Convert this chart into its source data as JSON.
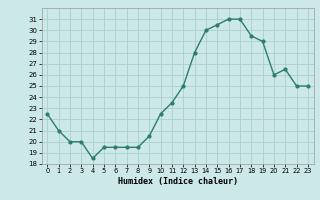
{
  "hours": [
    0,
    1,
    2,
    3,
    4,
    5,
    6,
    7,
    8,
    9,
    10,
    11,
    12,
    13,
    14,
    15,
    16,
    17,
    18,
    19,
    20,
    21,
    22,
    23
  ],
  "values": [
    22.5,
    21.0,
    20.0,
    20.0,
    18.5,
    19.5,
    19.5,
    19.5,
    19.5,
    20.5,
    22.5,
    23.5,
    25.0,
    28.0,
    30.0,
    30.5,
    31.0,
    31.0,
    29.5,
    29.0,
    26.0,
    26.5,
    25.0,
    25.0
  ],
  "line_color": "#2e7d6e",
  "bg_color": "#cce8e8",
  "grid_color": "#aacece",
  "xlabel": "Humidex (Indice chaleur)",
  "ylim": [
    18,
    32
  ],
  "yticks": [
    18,
    19,
    20,
    21,
    22,
    23,
    24,
    25,
    26,
    27,
    28,
    29,
    30,
    31
  ],
  "xlim": [
    -0.5,
    23.5
  ],
  "xtick_labels": [
    "0",
    "1",
    "2",
    "3",
    "4",
    "5",
    "6",
    "7",
    "8",
    "9",
    "10",
    "11",
    "12",
    "13",
    "14",
    "15",
    "16",
    "17",
    "18",
    "19",
    "20",
    "21",
    "22",
    "23"
  ]
}
